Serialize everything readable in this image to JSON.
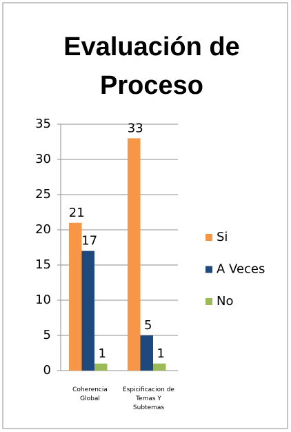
{
  "chart_data": {
    "type": "bar",
    "title": "Evaluación de Proceso",
    "categories": [
      "Coherencia Global",
      "Espicificacion de Temas Y Subtemas"
    ],
    "series": [
      {
        "name": "Si",
        "color": "#f79646",
        "values": [
          21,
          33
        ]
      },
      {
        "name": "A Veces",
        "color": "#1f497d",
        "values": [
          17,
          5
        ]
      },
      {
        "name": "No",
        "color": "#9bbb59",
        "values": [
          1,
          1
        ]
      }
    ],
    "ylim": [
      0,
      35
    ],
    "yticks": [
      0,
      5,
      10,
      15,
      20,
      25,
      30,
      35
    ],
    "grid": true,
    "legend": "right"
  }
}
